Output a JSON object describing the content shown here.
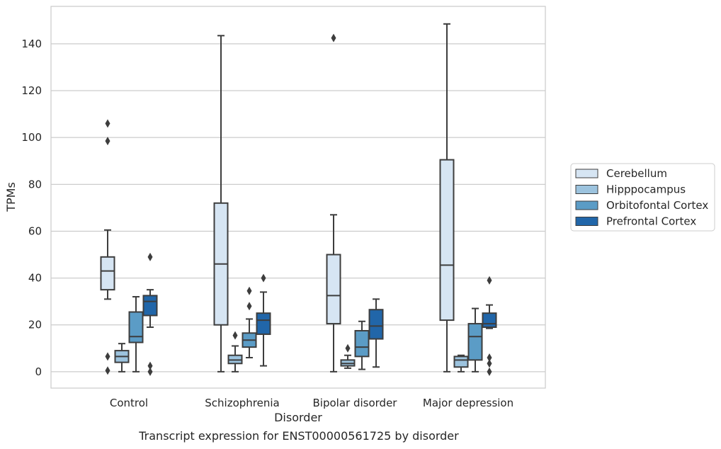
{
  "caption": "Transcript expression for ENST00000561725 by disorder",
  "chart_data": {
    "type": "boxplot",
    "title": "",
    "xlabel": "Disorder",
    "ylabel": "TPMs",
    "ylim": [
      -7,
      156
    ],
    "yticks": [
      0,
      20,
      40,
      60,
      80,
      100,
      120,
      140
    ],
    "grid": true,
    "legend_position": "right",
    "categories": [
      "Control",
      "Schizophrenia",
      "Bipolar disorder",
      "Major depression"
    ],
    "series": [
      {
        "name": "Cerebellum",
        "color": "#d6e5f3",
        "boxes": [
          {
            "whislo": 31,
            "q1": 35,
            "med": 43,
            "q3": 49,
            "whishi": 60.5,
            "fliers": [
              106,
              98.5,
              6.5,
              0.5
            ]
          },
          {
            "whislo": 0,
            "q1": 20,
            "med": 46,
            "q3": 72,
            "whishi": 143.5,
            "fliers": []
          },
          {
            "whislo": 0,
            "q1": 20.5,
            "med": 32.5,
            "q3": 50,
            "whishi": 67,
            "fliers": [
              142.5
            ]
          },
          {
            "whislo": 0,
            "q1": 22,
            "med": 45.5,
            "q3": 90.5,
            "whishi": 148.5,
            "fliers": []
          }
        ]
      },
      {
        "name": "Hipppocampus",
        "color": "#9cc3de",
        "boxes": [
          {
            "whislo": 0,
            "q1": 4,
            "med": 6.5,
            "q3": 9,
            "whishi": 12,
            "fliers": []
          },
          {
            "whislo": 0,
            "q1": 3.5,
            "med": 5,
            "q3": 7,
            "whishi": 11,
            "fliers": [
              15.5
            ]
          },
          {
            "whislo": 1.5,
            "q1": 2.5,
            "med": 3.5,
            "q3": 5,
            "whishi": 7,
            "fliers": [
              10
            ]
          },
          {
            "whislo": 0,
            "q1": 2,
            "med": 5,
            "q3": 6.5,
            "whishi": 7,
            "fliers": []
          }
        ]
      },
      {
        "name": "Orbitofontal Cortex",
        "color": "#5b9cc6",
        "boxes": [
          {
            "whislo": 0,
            "q1": 12.5,
            "med": 15,
            "q3": 25.5,
            "whishi": 32,
            "fliers": []
          },
          {
            "whislo": 6,
            "q1": 10.5,
            "med": 13.5,
            "q3": 16.5,
            "whishi": 22.5,
            "fliers": [
              34.5,
              28
            ]
          },
          {
            "whislo": 1,
            "q1": 6.5,
            "med": 10.5,
            "q3": 17.5,
            "whishi": 21.5,
            "fliers": []
          },
          {
            "whislo": 0,
            "q1": 5,
            "med": 15,
            "q3": 20.5,
            "whishi": 27,
            "fliers": []
          }
        ]
      },
      {
        "name": "Prefrontal Cortex",
        "color": "#2166a9",
        "boxes": [
          {
            "whislo": 19,
            "q1": 24,
            "med": 30,
            "q3": 32.5,
            "whishi": 35,
            "fliers": [
              49,
              2.5,
              0
            ]
          },
          {
            "whislo": 2.5,
            "q1": 16,
            "med": 22,
            "q3": 25,
            "whishi": 34,
            "fliers": [
              40
            ]
          },
          {
            "whislo": 2,
            "q1": 14,
            "med": 19.5,
            "q3": 26.5,
            "whishi": 31,
            "fliers": []
          },
          {
            "whislo": 18.5,
            "q1": 19,
            "med": 20.5,
            "q3": 25,
            "whishi": 28.5,
            "fliers": [
              39,
              6,
              3.5,
              0
            ]
          }
        ]
      }
    ]
  }
}
